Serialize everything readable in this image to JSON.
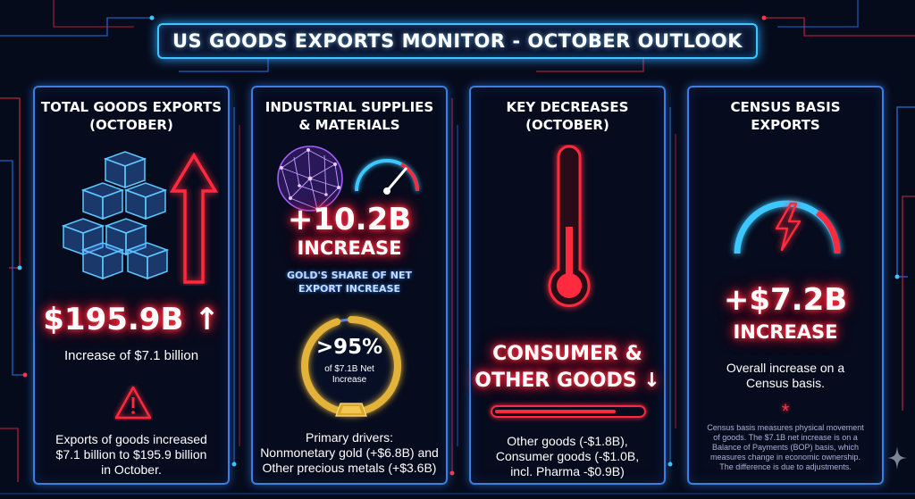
{
  "title": "US GOODS EXPORTS MONITOR - OCTOBER OUTLOOK",
  "panels": [
    {
      "title_lines": [
        "TOTAL GOODS EXPORTS",
        "(OCTOBER)"
      ],
      "icons": [
        "cube-stack-icon",
        "up-arrow-icon",
        "warning-icon"
      ],
      "headline": "$195.9B ↑",
      "subline": "Increase of $7.1 billion",
      "detail_lines": [
        "Exports of goods increased",
        "$7.1 billion to $195.9 billion",
        "in October."
      ]
    },
    {
      "title_lines": [
        "INDUSTRIAL SUPPLIES",
        "& MATERIALS"
      ],
      "icons": [
        "network-globe-icon",
        "speedometer-icon",
        "gold-bar-icon"
      ],
      "headline": "+10.2B",
      "headline_sub": "INCREASE",
      "caption_lines": [
        "GOLD'S SHARE OF NET",
        "EXPORT INCREASE"
      ],
      "ring_value": ">95%",
      "ring_fraction": 0.95,
      "ring_sub_lines": [
        "of $7.1B Net",
        "Increase"
      ],
      "detail_lines": [
        "Primary drivers:",
        "Nonmonetary gold (+$6.8B) and",
        "Other precious metals (+$3.6B)"
      ]
    },
    {
      "title_lines": [
        "KEY DECREASES",
        "(OCTOBER)"
      ],
      "icons": [
        "thermometer-icon"
      ],
      "headline_lines": [
        "CONSUMER &",
        "OTHER GOODS ↓"
      ],
      "detail_lines": [
        "Other goods (-$1.8B),",
        "Consumer goods (-$1.0B,",
        "incl. Pharma -$0.9B)"
      ]
    },
    {
      "title_lines": [
        "CENSUS BASIS",
        "EXPORTS"
      ],
      "icons": [
        "lightning-gauge-icon"
      ],
      "headline": "+$7.2B",
      "headline_sub": "INCREASE",
      "subline_lines": [
        "Overall increase on a",
        "Census basis."
      ],
      "asterisk": "*",
      "footnote_lines": [
        "Census basis measures physical movement",
        "of goods. The $7.1B net increase is on a",
        "Balance of Payments (BOP) basis, which",
        "measures change in economic ownership.",
        "The difference is due to adjustments."
      ]
    }
  ],
  "colors": {
    "background": "#060b1c",
    "accent_blue": "#3ec7ff",
    "accent_red": "#ff2a3d",
    "gold": "#e2b23a",
    "purple": "#a860ff"
  }
}
